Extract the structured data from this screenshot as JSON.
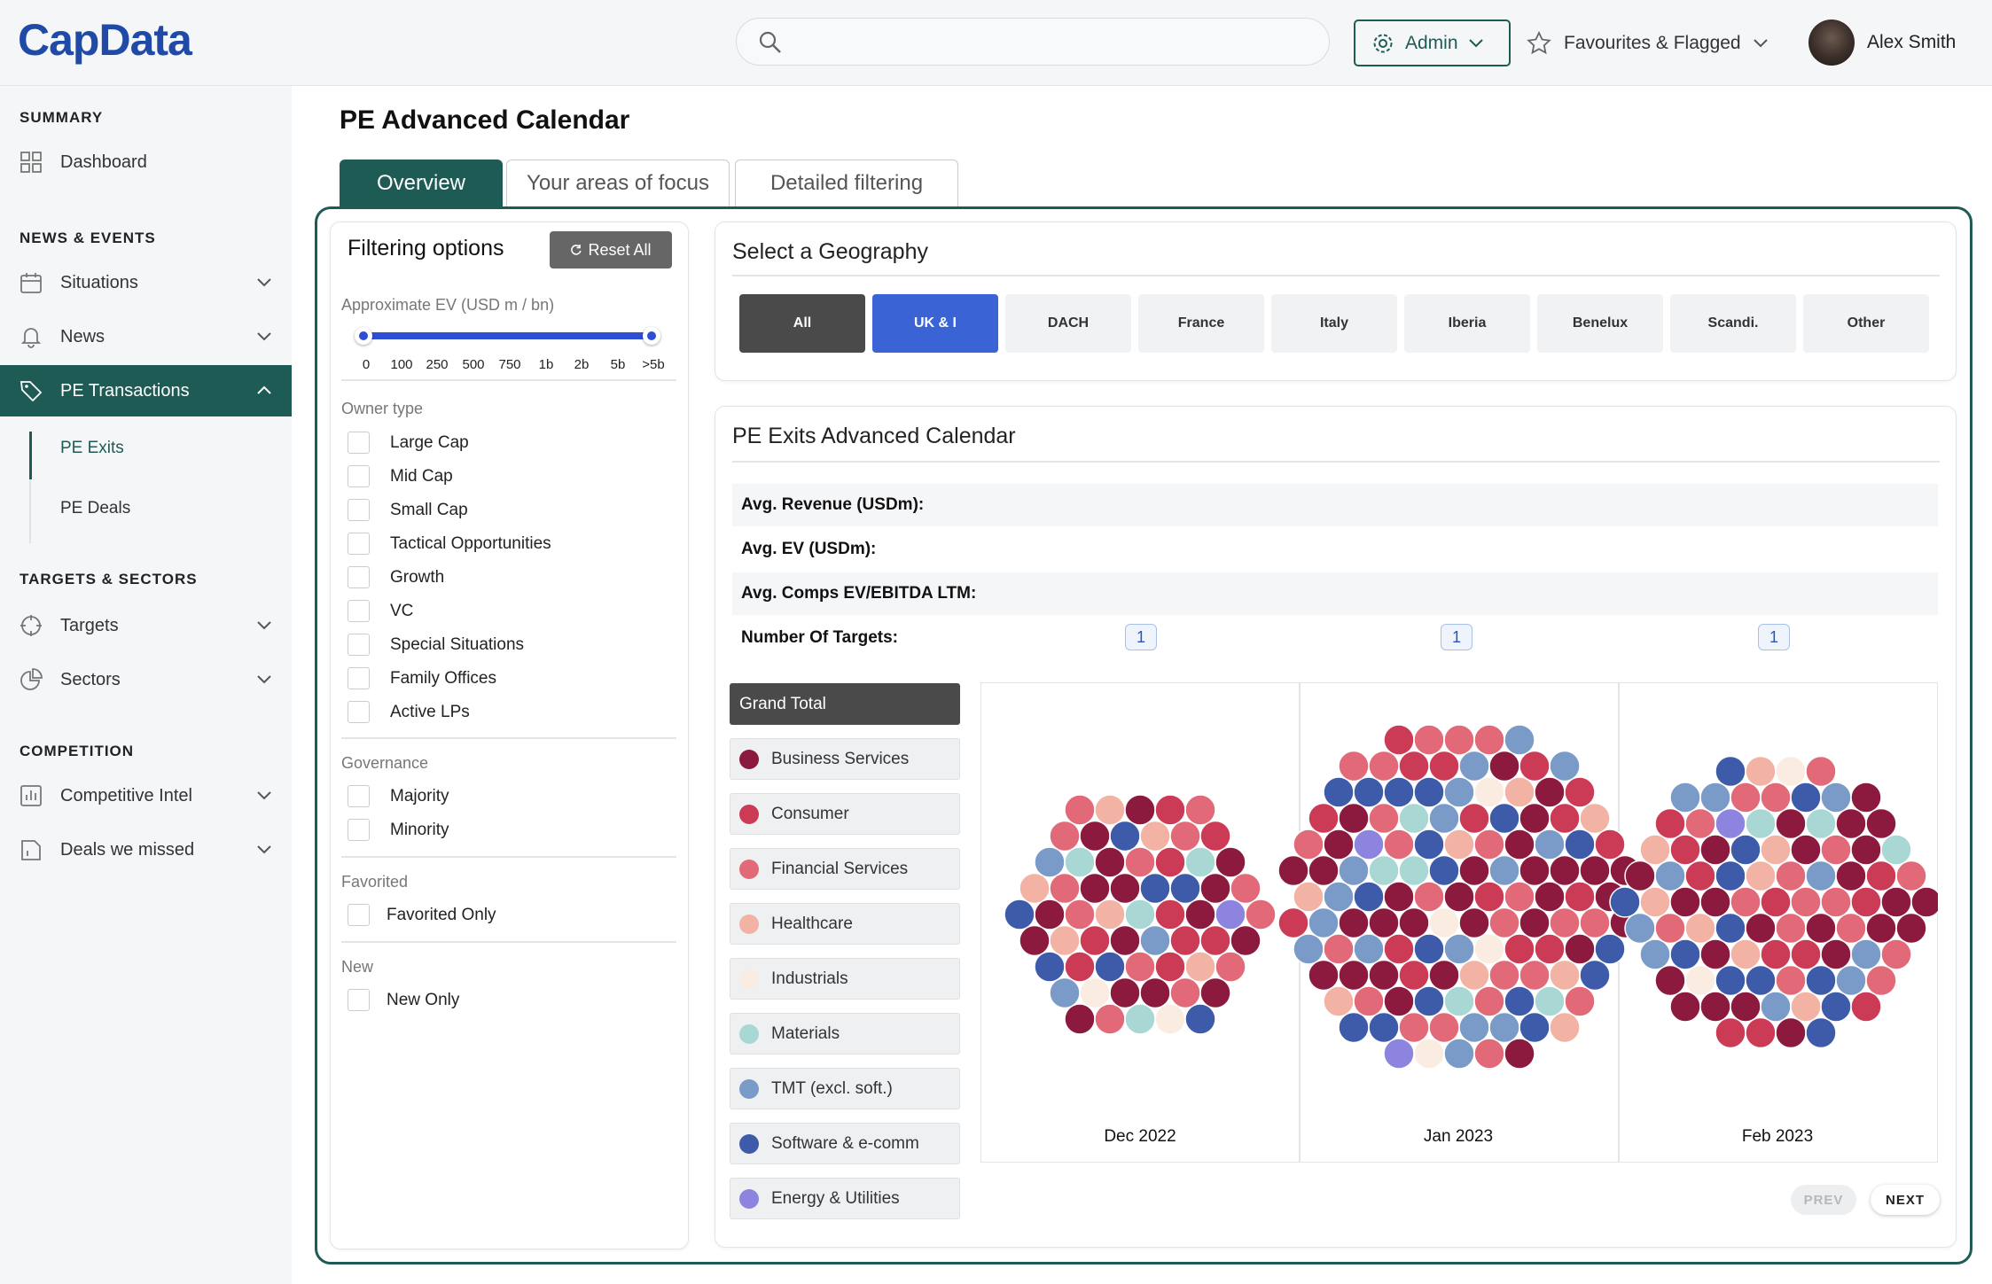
{
  "header": {
    "logo": "CapData",
    "admin_label": "Admin",
    "fav_label": "Favourites & Flagged",
    "user_name": "Alex Smith",
    "search_placeholder": ""
  },
  "sidebar": {
    "sections": [
      {
        "label": "SUMMARY"
      },
      {
        "label": "NEWS & EVENTS"
      },
      {
        "label": "TARGETS & SECTORS"
      },
      {
        "label": "COMPETITION"
      }
    ],
    "items": [
      {
        "label": "Dashboard",
        "icon": "grid-icon"
      },
      {
        "label": "Situations",
        "icon": "calendar-icon"
      },
      {
        "label": "News",
        "icon": "bell-icon"
      },
      {
        "label": "PE Transactions",
        "icon": "tag-icon"
      },
      {
        "label": "Targets",
        "icon": "crosshair-icon"
      },
      {
        "label": "Sectors",
        "icon": "pie-icon"
      },
      {
        "label": "Competitive Intel",
        "icon": "bar-chart-icon"
      },
      {
        "label": "Deals we missed",
        "icon": "file-icon"
      }
    ],
    "subitems": [
      {
        "label": "PE Exits"
      },
      {
        "label": "PE Deals"
      }
    ]
  },
  "page": {
    "title": "PE Advanced Calendar",
    "tabs": [
      {
        "label": "Overview"
      },
      {
        "label": "Your areas of focus"
      },
      {
        "label": "Detailed filtering"
      }
    ]
  },
  "filters": {
    "title": "Filtering options",
    "reset_label": "Reset All",
    "ev_label": "Approximate EV (USD m / bn)",
    "ev_ticks": [
      "0",
      "100",
      "250",
      "500",
      "750",
      "1b",
      "2b",
      "5b",
      ">5b"
    ],
    "owner_label": "Owner type",
    "owner_types": [
      "Large Cap",
      "Mid Cap",
      "Small Cap",
      "Tactical Opportunities",
      "Growth",
      "VC",
      "Special Situations",
      "Family Offices",
      "Active LPs"
    ],
    "governance_label": "Governance",
    "governance": [
      "Majority",
      "Minority"
    ],
    "favorited_label": "Favorited",
    "favorited": [
      "Favorited Only"
    ],
    "new_label": "New",
    "new": [
      "New Only"
    ]
  },
  "geography": {
    "title": "Select a Geography",
    "options": [
      "All",
      "UK & I",
      "DACH",
      "France",
      "Italy",
      "Iberia",
      "Benelux",
      "Scandi.",
      "Other"
    ],
    "selected": "UK & I"
  },
  "calendar": {
    "title": "PE Exits Advanced Calendar",
    "stats": [
      "Avg. Revenue (USDm):",
      "Avg. EV (USDm):",
      "Avg. Comps EV/EBITDA LTM:",
      "Number Of Targets:"
    ],
    "targets": [
      "1",
      "1",
      "1"
    ],
    "legend": [
      {
        "label": "Grand Total",
        "color": ""
      },
      {
        "label": "Business Services",
        "color": "#8b1a3e"
      },
      {
        "label": "Consumer",
        "color": "#cc3b55"
      },
      {
        "label": "Financial Services",
        "color": "#e26a78"
      },
      {
        "label": "Healthcare",
        "color": "#f3b3a4"
      },
      {
        "label": "Industrials",
        "color": "#faece0"
      },
      {
        "label": "Materials",
        "color": "#a9d7d3"
      },
      {
        "label": "TMT (excl. soft.)",
        "color": "#7a9ac8"
      },
      {
        "label": "Software & e-comm",
        "color": "#3d5ba8"
      },
      {
        "label": "Energy & Utilities",
        "color": "#8d84df"
      }
    ],
    "months": [
      "Dec 2022",
      "Jan 2023",
      "Feb 2023"
    ],
    "prev": "PREV",
    "next": "NEXT"
  }
}
